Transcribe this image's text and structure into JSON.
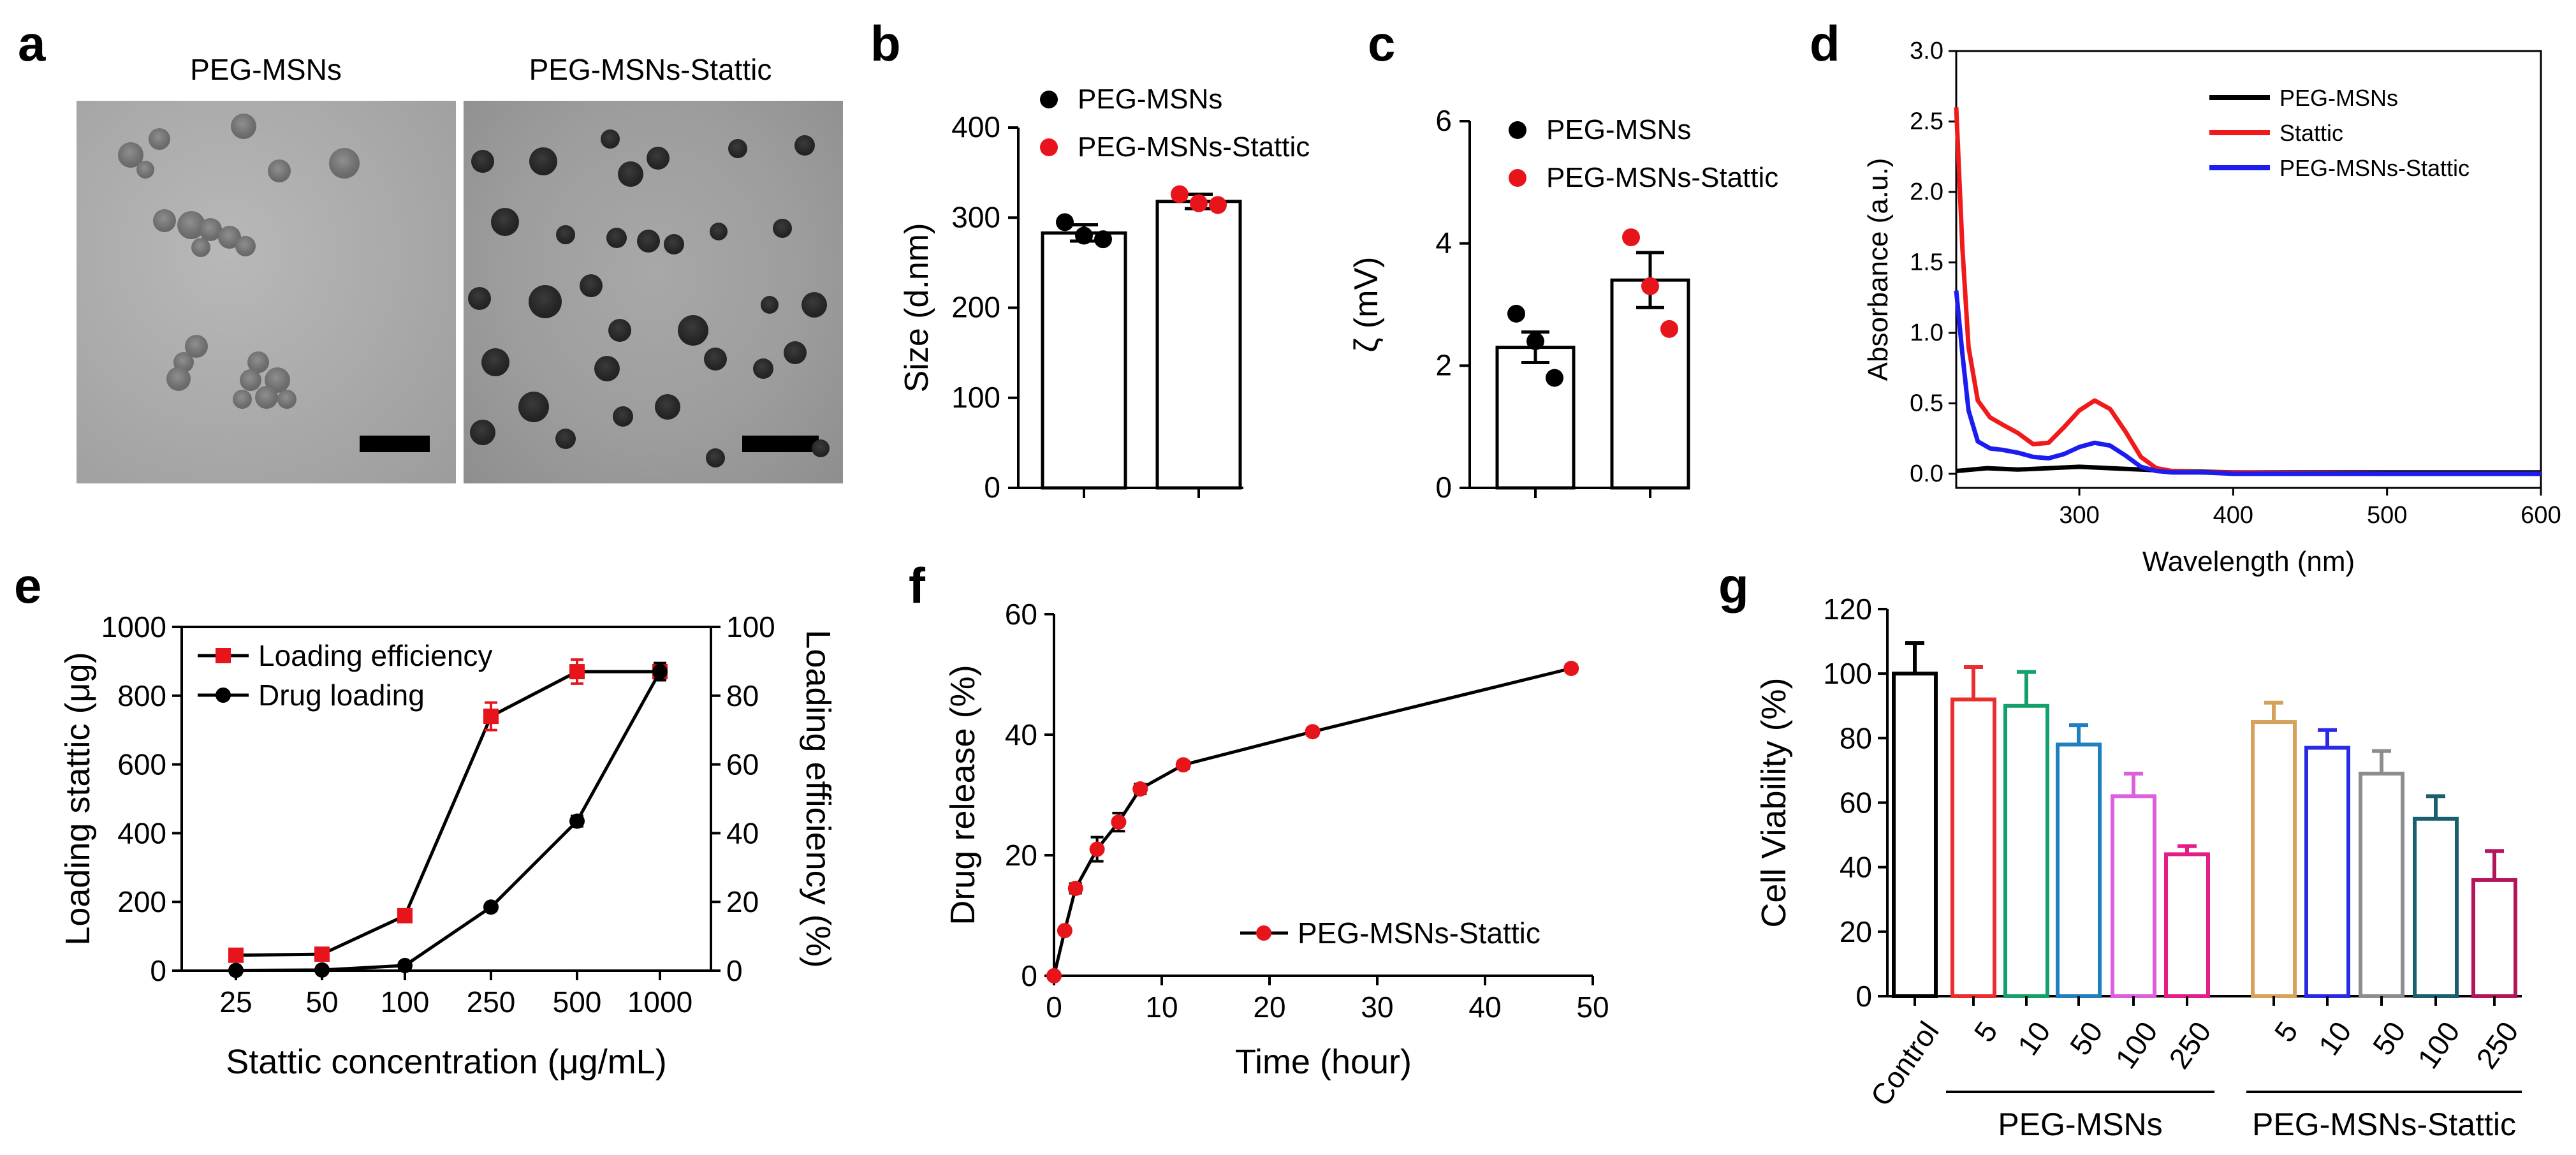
{
  "figure": {
    "panel_labels": [
      "a",
      "b",
      "c",
      "d",
      "e",
      "f",
      "g"
    ]
  },
  "panel_a": {
    "left_title": "PEG-MSNs",
    "right_title": "PEG-MSNs-Stattic",
    "image_note_left": "tem-micrograph-peg-msns",
    "image_note_right": "tem-micrograph-peg-msns-stattic"
  },
  "chart_data": [
    {
      "panel": "b",
      "type": "bar",
      "categories": [
        "PEG-MSNs",
        "PEG-MSNs-Stattic"
      ],
      "values": [
        283,
        318
      ],
      "errors": [
        9,
        8
      ],
      "points": [
        [
          295,
          280,
          276
        ],
        [
          326,
          316,
          314
        ]
      ],
      "point_colors": [
        "#000000",
        "#e8141b"
      ],
      "ylabel": "Size (d.nm)",
      "yticks": [
        0,
        100,
        200,
        300,
        400
      ],
      "ylim": [
        0,
        400
      ],
      "legend": [
        "PEG-MSNs",
        "PEG-MSNs-Stattic"
      ],
      "legend_position": "top"
    },
    {
      "panel": "c",
      "type": "bar",
      "categories": [
        "PEG-MSNs",
        "PEG-MSNs-Stattic"
      ],
      "values": [
        2.3,
        3.4
      ],
      "errors": [
        0.25,
        0.45
      ],
      "points": [
        [
          2.85,
          2.4,
          1.8
        ],
        [
          4.1,
          3.3,
          2.6
        ]
      ],
      "point_colors": [
        "#000000",
        "#e8141b"
      ],
      "ylabel": "ζ (mV)",
      "yticks": [
        0,
        2,
        4,
        6
      ],
      "ylim": [
        0,
        6
      ],
      "legend": [
        "PEG-MSNs",
        "PEG-MSNs-Stattic"
      ],
      "legend_position": "top"
    },
    {
      "panel": "d",
      "type": "line",
      "xlabel": "Wavelength (nm)",
      "ylabel": "Absorbance (a.u.)",
      "xlim": [
        220,
        600
      ],
      "ylim": [
        -0.1,
        3.0
      ],
      "xticks": [
        300,
        400,
        500,
        600
      ],
      "yticks": [
        0.0,
        0.5,
        1.0,
        1.5,
        2.0,
        2.5,
        3.0
      ],
      "ytick_labels": [
        "0.0",
        "0.5",
        "1.0",
        "1.5",
        "2.0",
        "2.5",
        "3.0"
      ],
      "series": [
        {
          "name": "PEG-MSNs",
          "color": "#000000",
          "x": [
            220,
            240,
            260,
            280,
            300,
            320,
            340,
            360,
            400,
            500,
            600
          ],
          "y": [
            0.02,
            0.04,
            0.03,
            0.04,
            0.05,
            0.04,
            0.03,
            0.02,
            0.01,
            0.01,
            0.01
          ]
        },
        {
          "name": "Stattic",
          "color": "#f11a1a",
          "x": [
            220,
            224,
            228,
            234,
            242,
            250,
            260,
            270,
            280,
            290,
            300,
            310,
            320,
            330,
            340,
            350,
            360,
            380,
            400,
            500,
            600
          ],
          "y": [
            2.6,
            1.6,
            0.9,
            0.52,
            0.4,
            0.35,
            0.29,
            0.21,
            0.22,
            0.33,
            0.45,
            0.52,
            0.46,
            0.3,
            0.12,
            0.04,
            0.02,
            0.01,
            0.01,
            0.0,
            0.0
          ]
        },
        {
          "name": "PEG-MSNs-Stattic",
          "color": "#1c1cf0",
          "x": [
            220,
            224,
            228,
            234,
            242,
            250,
            260,
            270,
            280,
            290,
            300,
            310,
            320,
            330,
            340,
            350,
            360,
            380,
            400,
            500,
            600
          ],
          "y": [
            1.3,
            0.85,
            0.45,
            0.23,
            0.18,
            0.17,
            0.15,
            0.12,
            0.11,
            0.14,
            0.19,
            0.22,
            0.2,
            0.13,
            0.05,
            0.02,
            0.01,
            0.01,
            0.0,
            0.0,
            0.0
          ]
        }
      ],
      "legend_position": "top-right"
    },
    {
      "panel": "e",
      "type": "line",
      "xlabel": "Stattic concentration (μg/mL)",
      "ylabel": "Loading stattic (μg)",
      "ylabel_right": "Loading efficiency (%)",
      "categories": [
        "25",
        "50",
        "100",
        "250",
        "500",
        "1000"
      ],
      "ylim": [
        0,
        1000
      ],
      "ylim_right": [
        0,
        100
      ],
      "yticks": [
        0,
        200,
        400,
        600,
        800,
        1000
      ],
      "yticks_right": [
        0,
        20,
        40,
        60,
        80,
        100
      ],
      "series": [
        {
          "name": "Loading efficiency",
          "color": "#e8141b",
          "marker": "square",
          "axis": "right",
          "values": [
            4.5,
            4.8,
            16,
            74,
            87,
            87
          ],
          "errors": [
            0.3,
            0.3,
            0.5,
            4,
            3.5,
            1.5
          ]
        },
        {
          "name": "Drug loading",
          "color": "#000000",
          "marker": "circle",
          "axis": "left",
          "values": [
            1,
            2,
            15,
            185,
            435,
            870
          ],
          "errors": [
            2,
            2,
            3,
            10,
            15,
            25
          ]
        }
      ],
      "legend_position": "top-left"
    },
    {
      "panel": "f",
      "type": "line",
      "xlabel": "Time (hour)",
      "ylabel": "Drug release (%)",
      "xlim": [
        0,
        50
      ],
      "ylim": [
        0,
        60
      ],
      "xticks": [
        0,
        10,
        20,
        30,
        40,
        50
      ],
      "yticks": [
        0,
        20,
        40,
        60
      ],
      "series": [
        {
          "name": "PEG-MSNs-Stattic",
          "color": "#e8141b",
          "line_color": "#000000",
          "x": [
            0,
            1,
            2,
            4,
            6,
            8,
            12,
            24,
            48
          ],
          "y": [
            0,
            7.5,
            14.5,
            21,
            25.5,
            31,
            35,
            40.5,
            51
          ],
          "errors": [
            0,
            0.5,
            0.8,
            2,
            1.5,
            0.8,
            0.6,
            0.6,
            0.6
          ]
        }
      ],
      "legend_position": "bottom-right"
    },
    {
      "panel": "g",
      "type": "bar",
      "ylabel": "Cell Viability (%)",
      "ylim": [
        0,
        120
      ],
      "yticks": [
        0,
        20,
        40,
        60,
        80,
        100,
        120
      ],
      "categories": [
        "Control",
        "5",
        "10",
        "50",
        "100",
        "250",
        "5",
        "10",
        "50",
        "100",
        "250"
      ],
      "values": [
        100,
        92,
        90,
        78,
        62,
        44,
        85,
        77,
        69,
        55,
        36
      ],
      "errors": [
        9.5,
        10,
        10.5,
        6,
        7,
        2.5,
        6,
        5.5,
        7,
        7,
        9
      ],
      "colors": [
        "#000000",
        "#ec2d2d",
        "#14a06b",
        "#1f7fbf",
        "#dc5fdc",
        "#e41e86",
        "#d6a25a",
        "#2a2ae6",
        "#8d8d8d",
        "#1a5f6e",
        "#b4145a"
      ],
      "groups": [
        {
          "label": "PEG-MSNs",
          "from": 1,
          "to": 5
        },
        {
          "label": "PEG-MSNs-Stattic",
          "from": 6,
          "to": 10
        }
      ]
    }
  ]
}
